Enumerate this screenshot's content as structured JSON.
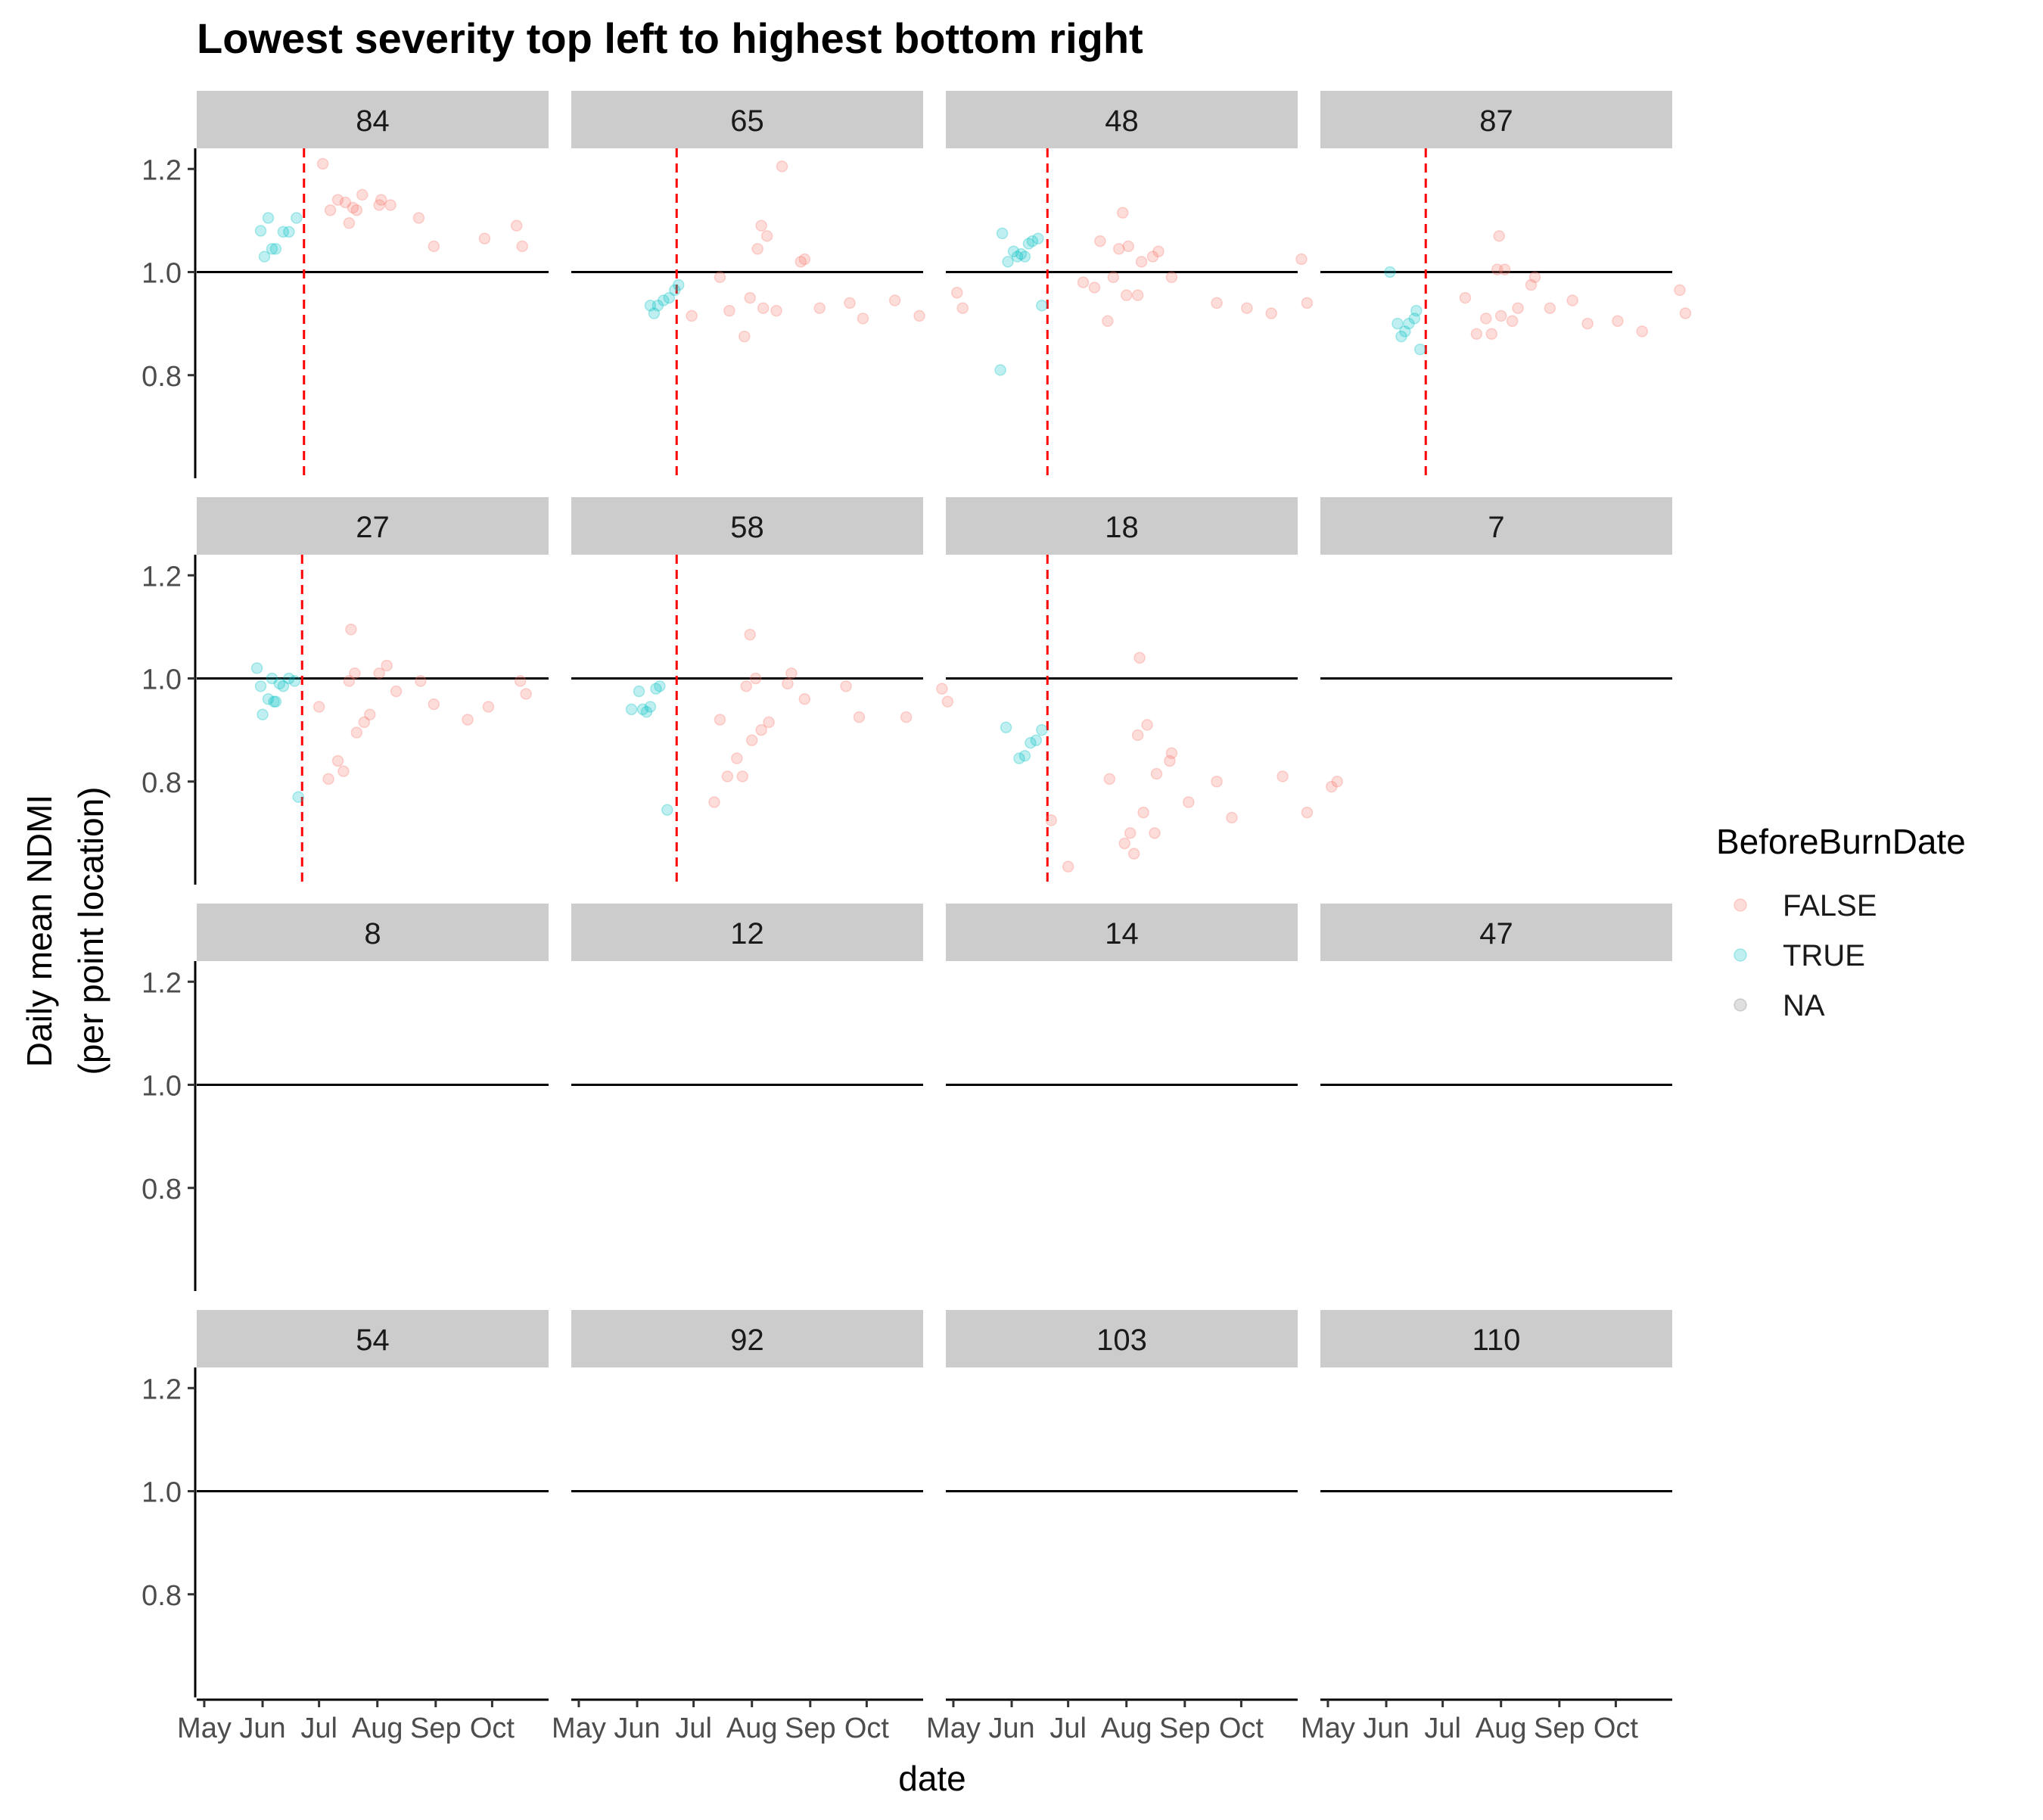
{
  "chart_data": {
    "type": "scatter",
    "title": "Lowest severity top left to highest bottom right",
    "xlabel": "date",
    "ylabel_lines": [
      "Daily mean NDMI",
      "(per point location)"
    ],
    "x_tick_labels": [
      "May",
      "Jun",
      "Jul",
      "Aug",
      "Sep",
      "Oct"
    ],
    "x_ticks": [
      "2021-05-01",
      "2021-06-01",
      "2021-07-01",
      "2021-08-01",
      "2021-09-01",
      "2021-10-01"
    ],
    "xlim": [
      "2021-04-27",
      "2021-10-31"
    ],
    "y_ticks": [
      0.8,
      1.0,
      1.2
    ],
    "y_tick_labels": [
      "0.8",
      "1.0",
      "1.2"
    ],
    "ylim": [
      0.6,
      1.24
    ],
    "reference_line_y": 1.0,
    "legend": {
      "title": "BeforeBurnDate",
      "position": "right",
      "items": [
        {
          "label": "FALSE",
          "color": "#F8766D"
        },
        {
          "label": "TRUE",
          "color": "#00BFC4"
        },
        {
          "label": "NA",
          "color": "#7F7F7F"
        }
      ]
    },
    "point_alpha": 0.25,
    "panels": [
      {
        "label": "84",
        "burn_date": "2021-06-23",
        "before": [
          [
            "2021-05-31",
            1.08
          ],
          [
            "2021-06-02",
            1.03
          ],
          [
            "2021-06-04",
            1.105
          ],
          [
            "2021-06-06",
            1.045
          ],
          [
            "2021-06-08",
            1.045
          ],
          [
            "2021-06-12",
            1.078
          ],
          [
            "2021-06-15",
            1.078
          ],
          [
            "2021-06-19",
            1.105
          ]
        ],
        "after": [
          [
            "2021-07-03",
            1.21
          ],
          [
            "2021-07-07",
            1.12
          ],
          [
            "2021-07-11",
            1.14
          ],
          [
            "2021-07-15",
            1.135
          ],
          [
            "2021-07-17",
            1.095
          ],
          [
            "2021-07-19",
            1.125
          ],
          [
            "2021-07-21",
            1.12
          ],
          [
            "2021-07-24",
            1.15
          ],
          [
            "2021-08-02",
            1.13
          ],
          [
            "2021-08-03",
            1.14
          ],
          [
            "2021-08-08",
            1.13
          ],
          [
            "2021-08-23",
            1.105
          ],
          [
            "2021-08-31",
            1.05
          ],
          [
            "2021-09-27",
            1.065
          ],
          [
            "2021-10-14",
            1.09
          ],
          [
            "2021-10-17",
            1.05
          ]
        ]
      },
      {
        "label": "65",
        "burn_date": "2021-06-22",
        "before": [
          [
            "2021-06-08",
            0.935
          ],
          [
            "2021-06-10",
            0.92
          ],
          [
            "2021-06-12",
            0.935
          ],
          [
            "2021-06-15",
            0.945
          ],
          [
            "2021-06-18",
            0.95
          ],
          [
            "2021-06-21",
            0.965
          ],
          [
            "2021-06-23",
            0.975
          ]
        ],
        "after": [
          [
            "2021-06-30",
            0.915
          ],
          [
            "2021-07-15",
            0.99
          ],
          [
            "2021-07-20",
            0.925
          ],
          [
            "2021-07-28",
            0.875
          ],
          [
            "2021-07-31",
            0.95
          ],
          [
            "2021-08-04",
            1.045
          ],
          [
            "2021-08-06",
            1.09
          ],
          [
            "2021-08-07",
            0.93
          ],
          [
            "2021-08-09",
            1.07
          ],
          [
            "2021-08-14",
            0.925
          ],
          [
            "2021-08-17",
            1.205
          ],
          [
            "2021-08-27",
            1.02
          ],
          [
            "2021-08-29",
            1.025
          ],
          [
            "2021-09-06",
            0.93
          ],
          [
            "2021-09-22",
            0.94
          ],
          [
            "2021-09-29",
            0.91
          ],
          [
            "2021-10-16",
            0.945
          ],
          [
            "2021-10-29",
            0.915
          ],
          [
            "2021-11-18",
            0.96
          ],
          [
            "2021-11-21",
            0.93
          ]
        ]
      },
      {
        "label": "48",
        "burn_date": "2021-06-20",
        "before": [
          [
            "2021-05-26",
            0.81
          ],
          [
            "2021-05-27",
            1.075
          ],
          [
            "2021-05-30",
            1.02
          ],
          [
            "2021-06-02",
            1.04
          ],
          [
            "2021-06-04",
            1.03
          ],
          [
            "2021-06-06",
            1.035
          ],
          [
            "2021-06-08",
            1.03
          ],
          [
            "2021-06-10",
            1.055
          ],
          [
            "2021-06-12",
            1.06
          ],
          [
            "2021-06-15",
            1.065
          ],
          [
            "2021-06-17",
            0.935
          ]
        ],
        "after": [
          [
            "2021-07-09",
            0.98
          ],
          [
            "2021-07-15",
            0.97
          ],
          [
            "2021-07-18",
            1.06
          ],
          [
            "2021-07-22",
            0.905
          ],
          [
            "2021-07-25",
            0.99
          ],
          [
            "2021-07-28",
            1.045
          ],
          [
            "2021-07-30",
            1.115
          ],
          [
            "2021-08-01",
            0.955
          ],
          [
            "2021-08-02",
            1.05
          ],
          [
            "2021-08-07",
            0.955
          ],
          [
            "2021-08-09",
            1.02
          ],
          [
            "2021-08-15",
            1.03
          ],
          [
            "2021-08-18",
            1.04
          ],
          [
            "2021-08-25",
            0.99
          ],
          [
            "2021-09-18",
            0.94
          ],
          [
            "2021-10-04",
            0.93
          ],
          [
            "2021-10-17",
            0.92
          ],
          [
            "2021-11-02",
            1.025
          ],
          [
            "2021-11-05",
            0.94
          ]
        ]
      },
      {
        "label": "87",
        "burn_date": "2021-06-22",
        "before": [
          [
            "2021-06-03",
            1.0
          ],
          [
            "2021-06-07",
            0.9
          ],
          [
            "2021-06-09",
            0.875
          ],
          [
            "2021-06-11",
            0.885
          ],
          [
            "2021-06-13",
            0.9
          ],
          [
            "2021-06-16",
            0.91
          ],
          [
            "2021-06-17",
            0.925
          ],
          [
            "2021-06-19",
            0.85
          ]
        ],
        "after": [
          [
            "2021-07-13",
            0.95
          ],
          [
            "2021-07-19",
            0.88
          ],
          [
            "2021-07-24",
            0.91
          ],
          [
            "2021-07-27",
            0.88
          ],
          [
            "2021-07-30",
            1.005
          ],
          [
            "2021-07-31",
            1.07
          ],
          [
            "2021-08-01",
            0.915
          ],
          [
            "2021-08-03",
            1.005
          ],
          [
            "2021-08-07",
            0.905
          ],
          [
            "2021-08-10",
            0.93
          ],
          [
            "2021-08-17",
            0.975
          ],
          [
            "2021-08-19",
            0.99
          ],
          [
            "2021-08-27",
            0.93
          ],
          [
            "2021-09-08",
            0.945
          ],
          [
            "2021-09-16",
            0.9
          ],
          [
            "2021-10-02",
            0.905
          ],
          [
            "2021-10-15",
            0.885
          ],
          [
            "2021-11-04",
            0.965
          ],
          [
            "2021-11-07",
            0.92
          ]
        ]
      },
      {
        "label": "27",
        "burn_date": "2021-06-22",
        "before": [
          [
            "2021-05-29",
            1.02
          ],
          [
            "2021-05-31",
            0.985
          ],
          [
            "2021-06-01",
            0.93
          ],
          [
            "2021-06-04",
            0.96
          ],
          [
            "2021-06-06",
            1.0
          ],
          [
            "2021-06-07",
            0.955
          ],
          [
            "2021-06-08",
            0.955
          ],
          [
            "2021-06-10",
            0.99
          ],
          [
            "2021-06-12",
            0.985
          ],
          [
            "2021-06-15",
            1.0
          ],
          [
            "2021-06-18",
            0.995
          ],
          [
            "2021-06-20",
            0.77
          ]
        ],
        "after": [
          [
            "2021-07-01",
            0.945
          ],
          [
            "2021-07-06",
            0.805
          ],
          [
            "2021-07-11",
            0.84
          ],
          [
            "2021-07-14",
            0.82
          ],
          [
            "2021-07-17",
            0.995
          ],
          [
            "2021-07-18",
            1.095
          ],
          [
            "2021-07-20",
            1.01
          ],
          [
            "2021-07-21",
            0.895
          ],
          [
            "2021-07-25",
            0.915
          ],
          [
            "2021-07-28",
            0.93
          ],
          [
            "2021-08-02",
            1.01
          ],
          [
            "2021-08-06",
            1.025
          ],
          [
            "2021-08-11",
            0.975
          ],
          [
            "2021-08-24",
            0.995
          ],
          [
            "2021-08-31",
            0.95
          ],
          [
            "2021-09-18",
            0.92
          ],
          [
            "2021-09-29",
            0.945
          ],
          [
            "2021-10-16",
            0.995
          ],
          [
            "2021-10-19",
            0.97
          ]
        ]
      },
      {
        "label": "58",
        "burn_date": "2021-06-22",
        "before": [
          [
            "2021-05-29",
            0.94
          ],
          [
            "2021-06-02",
            0.975
          ],
          [
            "2021-06-04",
            0.94
          ],
          [
            "2021-06-06",
            0.935
          ],
          [
            "2021-06-08",
            0.945
          ],
          [
            "2021-06-11",
            0.98
          ],
          [
            "2021-06-13",
            0.985
          ],
          [
            "2021-06-17",
            0.745
          ]
        ],
        "after": [
          [
            "2021-07-12",
            0.76
          ],
          [
            "2021-07-15",
            0.92
          ],
          [
            "2021-07-19",
            0.81
          ],
          [
            "2021-07-24",
            0.845
          ],
          [
            "2021-07-27",
            0.81
          ],
          [
            "2021-07-29",
            0.985
          ],
          [
            "2021-07-31",
            1.085
          ],
          [
            "2021-08-01",
            0.88
          ],
          [
            "2021-08-03",
            1.0
          ],
          [
            "2021-08-06",
            0.9
          ],
          [
            "2021-08-10",
            0.915
          ],
          [
            "2021-08-20",
            0.99
          ],
          [
            "2021-08-22",
            1.01
          ],
          [
            "2021-08-29",
            0.96
          ],
          [
            "2021-09-20",
            0.985
          ],
          [
            "2021-09-27",
            0.925
          ],
          [
            "2021-10-22",
            0.925
          ],
          [
            "2021-11-10",
            0.98
          ],
          [
            "2021-11-13",
            0.955
          ]
        ]
      },
      {
        "label": "18",
        "burn_date": "2021-06-20",
        "before": [
          [
            "2021-05-29",
            0.905
          ],
          [
            "2021-06-05",
            0.845
          ],
          [
            "2021-06-08",
            0.85
          ],
          [
            "2021-06-11",
            0.875
          ],
          [
            "2021-06-14",
            0.88
          ],
          [
            "2021-06-17",
            0.9
          ]
        ],
        "after": [
          [
            "2021-06-22",
            0.725
          ],
          [
            "2021-07-01",
            0.635
          ],
          [
            "2021-07-23",
            0.805
          ],
          [
            "2021-07-31",
            0.68
          ],
          [
            "2021-08-03",
            0.7
          ],
          [
            "2021-08-05",
            0.66
          ],
          [
            "2021-08-07",
            0.89
          ],
          [
            "2021-08-08",
            1.04
          ],
          [
            "2021-08-10",
            0.74
          ],
          [
            "2021-08-12",
            0.91
          ],
          [
            "2021-08-16",
            0.7
          ],
          [
            "2021-08-17",
            0.815
          ],
          [
            "2021-08-24",
            0.84
          ],
          [
            "2021-08-25",
            0.855
          ],
          [
            "2021-09-03",
            0.76
          ],
          [
            "2021-09-18",
            0.8
          ],
          [
            "2021-09-26",
            0.73
          ],
          [
            "2021-10-23",
            0.81
          ],
          [
            "2021-11-05",
            0.74
          ],
          [
            "2021-11-18",
            0.79
          ],
          [
            "2021-11-21",
            0.8
          ]
        ]
      },
      {
        "label": "7",
        "burn_date": null,
        "before": [],
        "after": []
      },
      {
        "label": "8",
        "burn_date": null,
        "before": [],
        "after": []
      },
      {
        "label": "12",
        "burn_date": null,
        "before": [],
        "after": []
      },
      {
        "label": "14",
        "burn_date": null,
        "before": [],
        "after": []
      },
      {
        "label": "47",
        "burn_date": null,
        "before": [],
        "after": []
      },
      {
        "label": "54",
        "burn_date": null,
        "before": [],
        "after": []
      },
      {
        "label": "92",
        "burn_date": null,
        "before": [],
        "after": []
      },
      {
        "label": "103",
        "burn_date": null,
        "before": [],
        "after": []
      },
      {
        "label": "110",
        "burn_date": null,
        "before": [],
        "after": []
      }
    ]
  }
}
